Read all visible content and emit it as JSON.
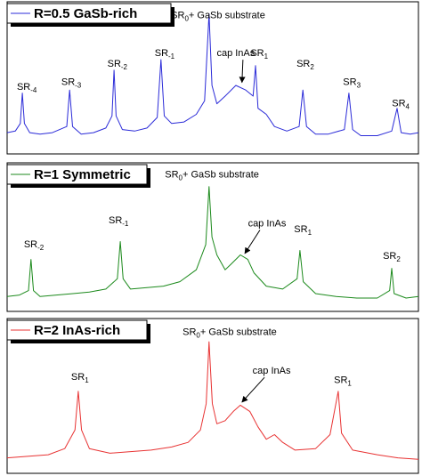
{
  "chart_data": [
    {
      "type": "line",
      "xlim": [
        0,
        100
      ],
      "ylim": [
        0,
        100
      ],
      "x": [
        0,
        2,
        3.2,
        3.7,
        4.2,
        5.5,
        8,
        11,
        14.5,
        15.2,
        15.9,
        18,
        21,
        24,
        25.5,
        26,
        26.5,
        28,
        31,
        34,
        36.5,
        37.4,
        38.2,
        40,
        43,
        46,
        48,
        49.1,
        49.8,
        51,
        53,
        55.6,
        58,
        59.8,
        60.4,
        61,
        63,
        65,
        68,
        71,
        71.9,
        72.8,
        75,
        78,
        82,
        83.1,
        84,
        86,
        90,
        93.5,
        94.8,
        95.8,
        98,
        100
      ],
      "series": [
        {
          "name": "R=0.5  GaSb-rich",
          "color": "#2b2bd8",
          "values": [
            14,
            15,
            20,
            40,
            20,
            14,
            13,
            14,
            18,
            42,
            18,
            13,
            14,
            17,
            25,
            55,
            25,
            16,
            15,
            17,
            24,
            62,
            25,
            20,
            21,
            26,
            35,
            92,
            45,
            33,
            38,
            45,
            42,
            38,
            58,
            30,
            26,
            18,
            15,
            18,
            42,
            18,
            13,
            13,
            16,
            40,
            16,
            12,
            12,
            15,
            30,
            14,
            13,
            14
          ]
        }
      ],
      "annotations": [
        {
          "text": "SR",
          "sub": "-4",
          "x": 4.8,
          "y": 44
        },
        {
          "text": "SR",
          "sub": "-3",
          "x": 15.6,
          "y": 47
        },
        {
          "text": "SR",
          "sub": "-2",
          "x": 26.8,
          "y": 59
        },
        {
          "text": "SR",
          "sub": "-1",
          "x": 38.3,
          "y": 66
        },
        {
          "text": "SR",
          "sub": "0",
          "after": "+ GaSb substrate",
          "x": 51.3,
          "y": 91
        },
        {
          "text": "cap InAs",
          "x": 55.6,
          "y": 66,
          "arrow": [
            57.1,
            47
          ]
        },
        {
          "text": "SR",
          "sub": "1",
          "x": 61.3,
          "y": 66
        },
        {
          "text": "SR",
          "sub": "2",
          "x": 72.5,
          "y": 59
        },
        {
          "text": "SR",
          "sub": "3",
          "x": 83.8,
          "y": 47
        },
        {
          "text": "SR",
          "sub": "4",
          "x": 95.7,
          "y": 33
        }
      ]
    },
    {
      "type": "line",
      "xlim": [
        0,
        100
      ],
      "ylim": [
        0,
        100
      ],
      "x": [
        0,
        3,
        5.2,
        5.8,
        6.4,
        8,
        12,
        16,
        20,
        24,
        26.8,
        27.5,
        28.2,
        30,
        34,
        38,
        42,
        46,
        48.3,
        49.1,
        49.8,
        51,
        53,
        54.5,
        56.7,
        58.5,
        60,
        63,
        67,
        70.5,
        71.2,
        72,
        75,
        80,
        85,
        90,
        93,
        93.5,
        94.1,
        97,
        100
      ],
      "series": [
        {
          "name": "R=1 Symmetric",
          "color": "#1c8a1c",
          "values": [
            10,
            11,
            14,
            35,
            14,
            10,
            11,
            12,
            13,
            15,
            22,
            47,
            22,
            15,
            16,
            17,
            20,
            28,
            45,
            84,
            50,
            38,
            28,
            32,
            38,
            35,
            26,
            17,
            15,
            22,
            41,
            20,
            12,
            10,
            9,
            9,
            14,
            29,
            12,
            9,
            10
          ]
        }
      ],
      "annotations": [
        {
          "text": "SR",
          "sub": "-2",
          "x": 6.5,
          "y": 45
        },
        {
          "text": "SR",
          "sub": "-1",
          "x": 27.1,
          "y": 61
        },
        {
          "text": "SR",
          "sub": "0",
          "after": "+ GaSb substrate",
          "x": 49.8,
          "y": 92
        },
        {
          "text": "cap InAs",
          "x": 63.2,
          "y": 59,
          "arrow": [
            57.8,
            39
          ]
        },
        {
          "text": "SR",
          "sub": "1",
          "x": 71.9,
          "y": 55
        },
        {
          "text": "SR",
          "sub": "2",
          "x": 93.5,
          "y": 37
        }
      ]
    },
    {
      "type": "line",
      "xlim": [
        0,
        100
      ],
      "ylim": [
        0,
        100
      ],
      "x": [
        0,
        5,
        10,
        14,
        16.5,
        17.3,
        18.1,
        20,
        25,
        30,
        35,
        40,
        44,
        47,
        48.4,
        49.1,
        49.9,
        51,
        53,
        55,
        56.7,
        59,
        61,
        63,
        65,
        67,
        70,
        75,
        78.5,
        80.5,
        81.3,
        84,
        90,
        95,
        100
      ],
      "series": [
        {
          "name": "R=2 InAs-rich",
          "color": "#e83232",
          "values": [
            10,
            11,
            12,
            16,
            28,
            53,
            28,
            16,
            13,
            14,
            15,
            17,
            20,
            28,
            45,
            85,
            45,
            32,
            34,
            40,
            44,
            40,
            30,
            22,
            25,
            20,
            15,
            16,
            25,
            53,
            26,
            15,
            12,
            10,
            9
          ]
        }
      ],
      "annotations": [
        {
          "text": "SR",
          "sub": "1",
          "x": 17.7,
          "y": 62
        },
        {
          "text": "SR",
          "sub": "0",
          "after": "+ GaSb substrate",
          "x": 54.1,
          "y": 91
        },
        {
          "text": "cap InAs",
          "x": 64.3,
          "y": 66,
          "arrow": [
            57.1,
            46
          ]
        },
        {
          "text": "SR",
          "sub": "1",
          "x": 81.6,
          "y": 60
        }
      ]
    }
  ]
}
